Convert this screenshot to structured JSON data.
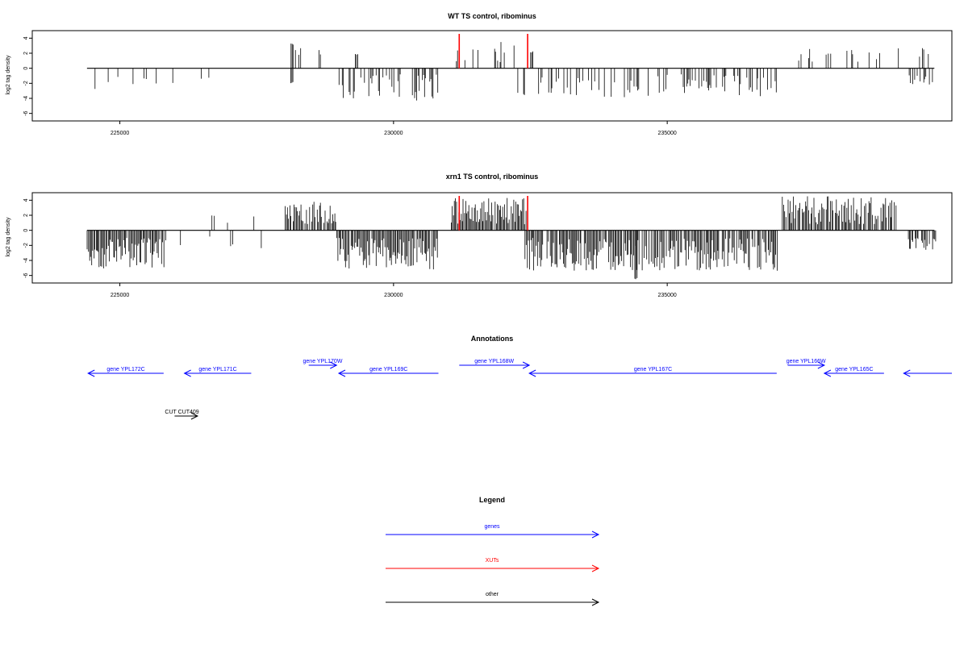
{
  "chart_data": [
    {
      "type": "bar",
      "title": "WT TS control, ribominus",
      "ylabel": "log2 tag density",
      "xlim": [
        223400,
        240200
      ],
      "ylim": [
        -7,
        5
      ],
      "xticks": [
        225000,
        230000,
        235000
      ],
      "xtick_labels": [
        "225000",
        "230000",
        "235000"
      ],
      "yticks": [
        -6,
        -4,
        -2,
        0,
        2,
        4
      ],
      "ytick_labels": [
        "-6",
        "-4",
        "-2",
        "0",
        "2",
        "4"
      ],
      "red_markers": [
        231200,
        232450
      ],
      "segments": [
        {
          "x0": 224420,
          "x1": 225780,
          "sign": -1,
          "density": 0.18,
          "min": 0.8,
          "max": 3.0
        },
        {
          "x0": 225900,
          "x1": 227000,
          "sign": -1,
          "density": 0.04,
          "min": 0.8,
          "max": 2.6
        },
        {
          "x0": 228120,
          "x1": 228160,
          "sign": 1,
          "density": 1,
          "min": 3.0,
          "max": 3.3
        },
        {
          "x0": 228120,
          "x1": 228160,
          "sign": -1,
          "density": 1,
          "min": 1.8,
          "max": 2.0
        },
        {
          "x0": 228200,
          "x1": 228960,
          "sign": 1,
          "density": 0.22,
          "min": 0.8,
          "max": 2.9
        },
        {
          "x0": 229000,
          "x1": 230820,
          "sign": -1,
          "density": 0.5,
          "min": 0.8,
          "max": 4.3
        },
        {
          "x0": 229300,
          "x1": 229350,
          "sign": 1,
          "density": 1,
          "min": 1.8,
          "max": 2.0
        },
        {
          "x0": 231120,
          "x1": 232200,
          "sign": 1,
          "density": 0.35,
          "min": 0.8,
          "max": 3.8
        },
        {
          "x0": 232250,
          "x1": 232400,
          "sign": -1,
          "density": 0.5,
          "min": 3.0,
          "max": 3.6
        },
        {
          "x0": 232500,
          "x1": 232550,
          "sign": 1,
          "density": 1,
          "min": 2.0,
          "max": 2.3
        },
        {
          "x0": 232650,
          "x1": 237000,
          "sign": -1,
          "density": 0.32,
          "min": 0.8,
          "max": 3.9
        },
        {
          "x0": 237300,
          "x1": 239900,
          "sign": 1,
          "density": 0.16,
          "min": 0.8,
          "max": 2.8
        },
        {
          "x0": 239400,
          "x1": 239900,
          "sign": -1,
          "density": 0.3,
          "min": 0.8,
          "max": 2.2
        }
      ]
    },
    {
      "type": "bar",
      "title": "xrn1 TS control, ribominus",
      "ylabel": "log2 tag density",
      "xlim": [
        223400,
        240200
      ],
      "ylim": [
        -7,
        5
      ],
      "xticks": [
        225000,
        230000,
        235000
      ],
      "xtick_labels": [
        "225000",
        "230000",
        "235000"
      ],
      "yticks": [
        -6,
        -4,
        -2,
        0,
        2,
        4
      ],
      "ytick_labels": [
        "-6",
        "-4",
        "-2",
        "0",
        "2",
        "4"
      ],
      "red_markers": [
        231200,
        232450
      ],
      "segments": [
        {
          "x0": 224400,
          "x1": 225800,
          "sign": -1,
          "density": 0.95,
          "min": 1.0,
          "max": 5.2
        },
        {
          "x0": 225200,
          "x1": 227600,
          "sign": 1,
          "density": 0.05,
          "min": 0.8,
          "max": 2.4
        },
        {
          "x0": 225800,
          "x1": 227600,
          "sign": -1,
          "density": 0.08,
          "min": 0.8,
          "max": 2.5
        },
        {
          "x0": 228000,
          "x1": 228960,
          "sign": 1,
          "density": 0.8,
          "min": 0.8,
          "max": 3.8
        },
        {
          "x0": 228960,
          "x1": 230800,
          "sign": -1,
          "density": 0.95,
          "min": 1.0,
          "max": 5.2
        },
        {
          "x0": 231050,
          "x1": 232420,
          "sign": 1,
          "density": 0.9,
          "min": 0.8,
          "max": 4.3
        },
        {
          "x0": 232400,
          "x1": 237000,
          "sign": -1,
          "density": 0.9,
          "min": 1.0,
          "max": 5.4
        },
        {
          "x0": 234400,
          "x1": 234450,
          "sign": -1,
          "density": 1,
          "min": 6.3,
          "max": 6.5
        },
        {
          "x0": 237100,
          "x1": 239200,
          "sign": 1,
          "density": 0.85,
          "min": 0.8,
          "max": 4.6
        },
        {
          "x0": 239400,
          "x1": 239900,
          "sign": -1,
          "density": 0.6,
          "min": 1.0,
          "max": 2.6
        }
      ]
    }
  ],
  "annotations": {
    "title": "Annotations",
    "genes": [
      {
        "label": "gene YPL172C",
        "start": 224420,
        "end": 225800,
        "strand": "-",
        "row": 1
      },
      {
        "label": "gene YPL171C",
        "start": 226180,
        "end": 227400,
        "strand": "-",
        "row": 1
      },
      {
        "label": "gene YPL170W",
        "start": 228450,
        "end": 228960,
        "strand": "+",
        "row": 0
      },
      {
        "label": "gene YPL169C",
        "start": 229000,
        "end": 230820,
        "strand": "-",
        "row": 1
      },
      {
        "label": "gene YPL168W",
        "start": 231200,
        "end": 232480,
        "strand": "+",
        "row": 0
      },
      {
        "label": "gene YPL167C",
        "start": 232480,
        "end": 237000,
        "strand": "-",
        "row": 1
      },
      {
        "label": "gene YPL166W",
        "start": 237200,
        "end": 237870,
        "strand": "+",
        "row": 0
      },
      {
        "label": "gene YPL165C",
        "start": 237870,
        "end": 238960,
        "strand": "-",
        "row": 1
      },
      {
        "label": "",
        "start": 239320,
        "end": 240200,
        "strand": "-",
        "row": 1
      }
    ],
    "other": [
      {
        "label": "CUT CUT409",
        "start": 226000,
        "end": 226420,
        "strand": "+"
      }
    ]
  },
  "legend": {
    "title": "Legend",
    "items": [
      {
        "label": "genes",
        "color": "#0000ff"
      },
      {
        "label": "XUTs",
        "color": "#ff0000"
      },
      {
        "label": "other",
        "color": "#000000"
      }
    ]
  },
  "colors": {
    "genes": "#0000ff",
    "xuts": "#ff0000",
    "other": "#000000",
    "marker": "#ff0000"
  }
}
